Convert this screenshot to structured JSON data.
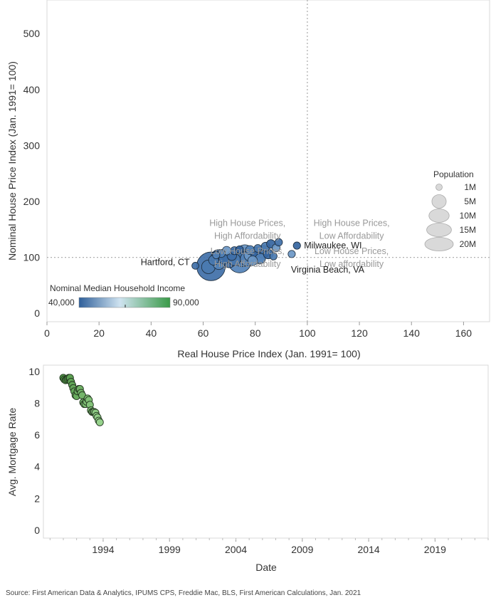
{
  "chart_data": [
    {
      "type": "scatter",
      "title": "",
      "xlabel": "Real House Price Index (Jan. 1991= 100)",
      "ylabel": "Nominal House Price Index (Jan. 1991= 100)",
      "xlim": [
        0,
        170
      ],
      "ylim": [
        -15,
        560
      ],
      "xticks": [
        0,
        20,
        40,
        60,
        80,
        100,
        120,
        140,
        160
      ],
      "yticks": [
        0,
        100,
        200,
        300,
        400,
        500
      ],
      "reference_lines": {
        "x": 100,
        "y": 100
      },
      "quadrant_labels": [
        {
          "line1": "High House Prices,",
          "line2": "High Affordability",
          "x": 77,
          "y": 100
        },
        {
          "line1": "High House Prices,",
          "line2": "Low Affordability",
          "x": 117,
          "y": 100
        },
        {
          "line1": "Low House Prices,",
          "line2": "High Affordability",
          "x": 77,
          "y": 50
        },
        {
          "line1": "Low House Prices,",
          "line2": "Low affordability",
          "x": 117,
          "y": 50
        }
      ],
      "annotations": [
        {
          "text": "Hartford, CT",
          "x": 57,
          "y": 86
        },
        {
          "text": "Milwaukee, WI",
          "x": 96,
          "y": 121
        },
        {
          "text": "Virginia Beach, VA",
          "x": 94,
          "y": 106
        }
      ],
      "color_legend": {
        "title": "Nominal Median Household Income",
        "min_label": "40,000",
        "max_label": "90,000",
        "colors": [
          "#2f5f9a",
          "#cfe3f0",
          "#3a9a48"
        ]
      },
      "size_legend": {
        "title": "Population",
        "labels": [
          "1M",
          "5M",
          "10M",
          "15M",
          "20M"
        ]
      },
      "points": [
        {
          "x": 57,
          "y": 85,
          "pop": 1.2
        },
        {
          "x": 62,
          "y": 83,
          "pop": 4.5
        },
        {
          "x": 63,
          "y": 84,
          "pop": 20
        },
        {
          "x": 64,
          "y": 95,
          "pop": 2.4
        },
        {
          "x": 65,
          "y": 104,
          "pop": 1.3
        },
        {
          "x": 66,
          "y": 89,
          "pop": 3.5
        },
        {
          "x": 66,
          "y": 100,
          "pop": 6
        },
        {
          "x": 67,
          "y": 107,
          "pop": 1.5
        },
        {
          "x": 68,
          "y": 97,
          "pop": 2.5
        },
        {
          "x": 69,
          "y": 112,
          "pop": 1.8
        },
        {
          "x": 70,
          "y": 93,
          "pop": 4
        },
        {
          "x": 71,
          "y": 103,
          "pop": 2.2
        },
        {
          "x": 72,
          "y": 112,
          "pop": 1.6
        },
        {
          "x": 72,
          "y": 96,
          "pop": 3.5
        },
        {
          "x": 73,
          "y": 105,
          "pop": 5
        },
        {
          "x": 74,
          "y": 93,
          "pop": 13
        },
        {
          "x": 74,
          "y": 114,
          "pop": 1.4
        },
        {
          "x": 75,
          "y": 101,
          "pop": 9.5
        },
        {
          "x": 76,
          "y": 108,
          "pop": 6.5
        },
        {
          "x": 77,
          "y": 97,
          "pop": 5
        },
        {
          "x": 78,
          "y": 113,
          "pop": 2
        },
        {
          "x": 78,
          "y": 104,
          "pop": 3.5
        },
        {
          "x": 79,
          "y": 94,
          "pop": 2.3
        },
        {
          "x": 80,
          "y": 109,
          "pop": 2.8
        },
        {
          "x": 81,
          "y": 101,
          "pop": 4.5
        },
        {
          "x": 81,
          "y": 116,
          "pop": 1.5
        },
        {
          "x": 82,
          "y": 98,
          "pop": 2.5
        },
        {
          "x": 83,
          "y": 110,
          "pop": 4
        },
        {
          "x": 84,
          "y": 119,
          "pop": 2
        },
        {
          "x": 85,
          "y": 106,
          "pop": 2.3
        },
        {
          "x": 86,
          "y": 124,
          "pop": 1.8
        },
        {
          "x": 87,
          "y": 102,
          "pop": 1.3
        },
        {
          "x": 88,
          "y": 117,
          "pop": 1.5
        },
        {
          "x": 89,
          "y": 127,
          "pop": 1.4
        },
        {
          "x": 94,
          "y": 106,
          "pop": 1.3
        },
        {
          "x": 96,
          "y": 121,
          "pop": 1.3
        }
      ]
    },
    {
      "type": "scatter",
      "title": "",
      "xlabel": "Date",
      "ylabel": "Avg. Mortgage Rate",
      "xlim": [
        1989.5,
        2023
      ],
      "ylim": [
        -0.5,
        10.4
      ],
      "xticks": [
        1994,
        1999,
        2004,
        2009,
        2014,
        2019
      ],
      "yticks": [
        0,
        2,
        4,
        6,
        8,
        10
      ],
      "points": [
        {
          "x": 1991.0,
          "y": 9.6
        },
        {
          "x": 1991.08,
          "y": 9.5
        },
        {
          "x": 1991.17,
          "y": 9.45
        },
        {
          "x": 1991.25,
          "y": 9.5
        },
        {
          "x": 1991.33,
          "y": 9.55
        },
        {
          "x": 1991.42,
          "y": 9.6
        },
        {
          "x": 1991.5,
          "y": 9.6
        },
        {
          "x": 1991.58,
          "y": 9.35
        },
        {
          "x": 1991.67,
          "y": 9.15
        },
        {
          "x": 1991.75,
          "y": 8.95
        },
        {
          "x": 1991.83,
          "y": 8.75
        },
        {
          "x": 1991.92,
          "y": 8.5
        },
        {
          "x": 1992.0,
          "y": 8.45
        },
        {
          "x": 1992.08,
          "y": 8.75
        },
        {
          "x": 1992.17,
          "y": 8.9
        },
        {
          "x": 1992.25,
          "y": 8.9
        },
        {
          "x": 1992.33,
          "y": 8.65
        },
        {
          "x": 1992.42,
          "y": 8.5
        },
        {
          "x": 1992.5,
          "y": 8.05
        },
        {
          "x": 1992.58,
          "y": 7.95
        },
        {
          "x": 1992.67,
          "y": 7.95
        },
        {
          "x": 1992.75,
          "y": 8.1
        },
        {
          "x": 1992.83,
          "y": 8.3
        },
        {
          "x": 1992.92,
          "y": 8.2
        },
        {
          "x": 1993.0,
          "y": 7.9
        },
        {
          "x": 1993.08,
          "y": 7.55
        },
        {
          "x": 1993.17,
          "y": 7.45
        },
        {
          "x": 1993.25,
          "y": 7.45
        },
        {
          "x": 1993.33,
          "y": 7.45
        },
        {
          "x": 1993.42,
          "y": 7.4
        },
        {
          "x": 1993.5,
          "y": 7.2
        },
        {
          "x": 1993.58,
          "y": 7.1
        },
        {
          "x": 1993.67,
          "y": 6.9
        },
        {
          "x": 1993.75,
          "y": 6.8
        }
      ]
    }
  ],
  "source_note": "Source: First American Data & Analytics, IPUMS CPS, Freddie Mac, BLS, First American Calculations, Jan. 2021"
}
